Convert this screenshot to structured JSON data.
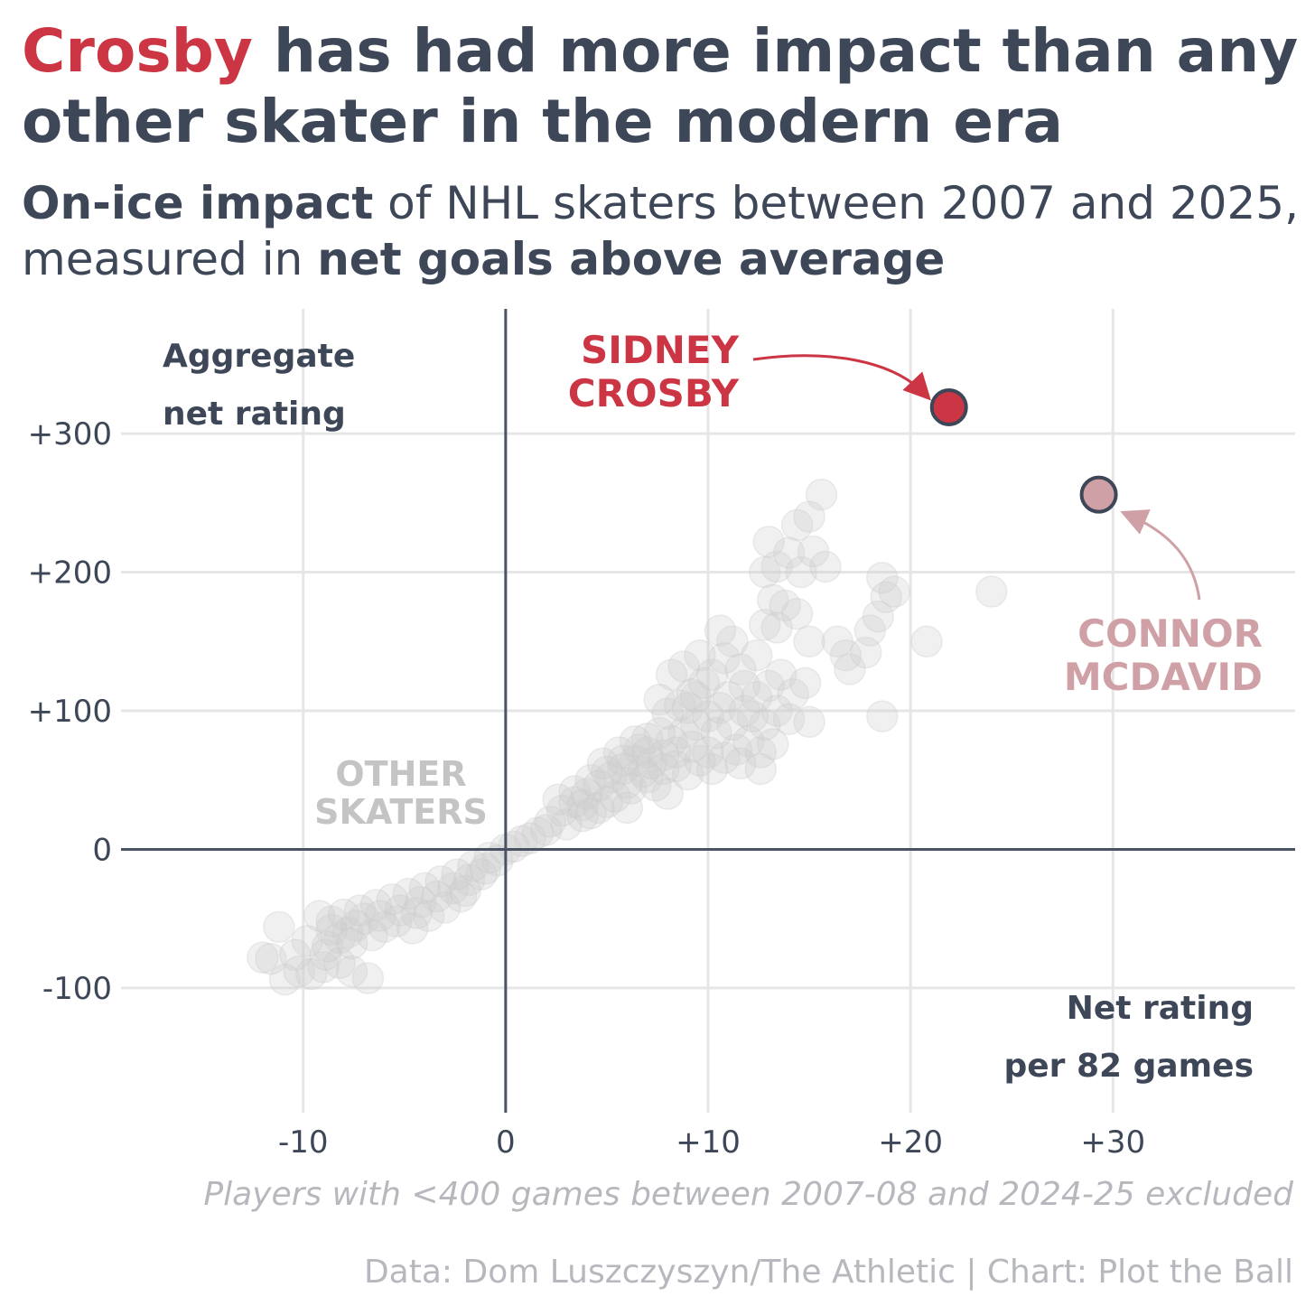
{
  "header": {
    "title_highlight": "Crosby",
    "title_rest": " has had more impact than any other skater in the modern era",
    "subtitle_bold1": "On-ice impact",
    "subtitle_mid": " of NHL skaters between 2007 and 2025, measured in ",
    "subtitle_bold2": "net goals above average"
  },
  "footer": {
    "note": "Players with <400 games between 2007-08 and 2024-25 excluded",
    "source": "Data: Dom Luszczyszyn/The Athletic | Chart: Plot the Ball"
  },
  "colors": {
    "text": "#3d4757",
    "crosby": "#cc3644",
    "mcdavid": "#cfa1a6",
    "others": "#cccccc",
    "grid": "#e6e6e6"
  },
  "chart_data": {
    "type": "scatter",
    "xlabel_lines": [
      "Net rating",
      "per 82 games"
    ],
    "ylabel_lines": [
      "Aggregate",
      "net rating"
    ],
    "xlim": [
      -19,
      39
    ],
    "ylim": [
      -190,
      390
    ],
    "x_ticks": [
      -10,
      0,
      10,
      20,
      30
    ],
    "x_tick_labels": [
      "-10",
      "0",
      "+10",
      "+20",
      "+30"
    ],
    "y_ticks": [
      -100,
      0,
      100,
      200,
      300
    ],
    "y_tick_labels": [
      "-100",
      "0",
      "+100",
      "+200",
      "+300"
    ],
    "highlighted": [
      {
        "name": "Sidney Crosby",
        "label_lines": [
          "SIDNEY",
          "CROSBY"
        ],
        "x": 21.9,
        "y": 319
      },
      {
        "name": "Connor McDavid",
        "label_lines": [
          "CONNOR",
          "MCDAVID"
        ],
        "x": 29.3,
        "y": 256
      }
    ],
    "others_label_lines": [
      "OTHER",
      "SKATERS"
    ],
    "others": [
      [
        -10.9,
        -94
      ],
      [
        -10.2,
        -88
      ],
      [
        -9.0,
        -85
      ],
      [
        -8.2,
        -82
      ],
      [
        -7.6,
        -88
      ],
      [
        -6.8,
        -93
      ],
      [
        -11.6,
        -79
      ],
      [
        -12.0,
        -78
      ],
      [
        -11.2,
        -56
      ],
      [
        -9.6,
        -90
      ],
      [
        -8.8,
        -70
      ],
      [
        -8.2,
        -64
      ],
      [
        -7.8,
        -60
      ],
      [
        -7.4,
        -55
      ],
      [
        -8.6,
        -52
      ],
      [
        -8.0,
        -47
      ],
      [
        -7.2,
        -44
      ],
      [
        -6.4,
        -40
      ],
      [
        -5.6,
        -36
      ],
      [
        -4.8,
        -32
      ],
      [
        -4.0,
        -28
      ],
      [
        -3.2,
        -23
      ],
      [
        -2.4,
        -18
      ],
      [
        -1.6,
        -12
      ],
      [
        -0.8,
        -6
      ],
      [
        0,
        0
      ],
      [
        0.8,
        6
      ],
      [
        1.6,
        12
      ],
      [
        -9.2,
        -48
      ],
      [
        -8.6,
        -58
      ],
      [
        -7.0,
        -50
      ],
      [
        -6.2,
        -48
      ],
      [
        -5.4,
        -52
      ],
      [
        -4.6,
        -57
      ],
      [
        -3.8,
        -48
      ],
      [
        -3.0,
        -42
      ],
      [
        -2.2,
        -34
      ],
      [
        -6.6,
        -62
      ],
      [
        -7.6,
        -68
      ],
      [
        -5.2,
        -44
      ],
      [
        -4.2,
        -38
      ],
      [
        -3.4,
        -34
      ],
      [
        -2.6,
        -28
      ],
      [
        -1.8,
        -22
      ],
      [
        -1.0,
        -14
      ],
      [
        -9.8,
        -66
      ],
      [
        -10.4,
        -76
      ],
      [
        -8.9,
        -76
      ],
      [
        -6.0,
        -56
      ],
      [
        -4.4,
        -46
      ],
      [
        -2.0,
        -30
      ],
      [
        -1.2,
        -18
      ],
      [
        -0.4,
        -8
      ],
      [
        0.4,
        2
      ],
      [
        1.2,
        8
      ],
      [
        2.0,
        14
      ],
      [
        2.2,
        20
      ],
      [
        2.8,
        28
      ],
      [
        3.4,
        34
      ],
      [
        4.0,
        40
      ],
      [
        4.6,
        46
      ],
      [
        5.2,
        52
      ],
      [
        5.8,
        58
      ],
      [
        6.4,
        64
      ],
      [
        7.0,
        70
      ],
      [
        3.0,
        18
      ],
      [
        3.8,
        24
      ],
      [
        4.6,
        30
      ],
      [
        5.4,
        38
      ],
      [
        6.2,
        44
      ],
      [
        7.0,
        52
      ],
      [
        7.8,
        58
      ],
      [
        2.6,
        36
      ],
      [
        3.4,
        42
      ],
      [
        4.2,
        50
      ],
      [
        5.0,
        56
      ],
      [
        5.8,
        64
      ],
      [
        6.6,
        72
      ],
      [
        4.8,
        62
      ],
      [
        5.6,
        70
      ],
      [
        6.4,
        78
      ],
      [
        7.2,
        62
      ],
      [
        7.8,
        68
      ],
      [
        8.4,
        60
      ],
      [
        9.0,
        54
      ],
      [
        9.6,
        64
      ],
      [
        10.2,
        58
      ],
      [
        10.8,
        66
      ],
      [
        11.4,
        72
      ],
      [
        8.2,
        78
      ],
      [
        8.8,
        84
      ],
      [
        9.4,
        90
      ],
      [
        10.0,
        96
      ],
      [
        10.6,
        102
      ],
      [
        8.0,
        98
      ],
      [
        8.6,
        104
      ],
      [
        9.2,
        112
      ],
      [
        9.8,
        120
      ],
      [
        8.2,
        126
      ],
      [
        8.8,
        132
      ],
      [
        9.4,
        110
      ],
      [
        10.2,
        126
      ],
      [
        10.8,
        138
      ],
      [
        11.2,
        150
      ],
      [
        10.6,
        158
      ],
      [
        9.6,
        140
      ],
      [
        11.8,
        118
      ],
      [
        12.4,
        110
      ],
      [
        13.0,
        118
      ],
      [
        13.6,
        126
      ],
      [
        14.2,
        112
      ],
      [
        14.8,
        120
      ],
      [
        12.2,
        96
      ],
      [
        12.8,
        90
      ],
      [
        13.4,
        100
      ],
      [
        14.0,
        94
      ],
      [
        15.0,
        92
      ],
      [
        12.0,
        78
      ],
      [
        12.6,
        70
      ],
      [
        13.2,
        76
      ],
      [
        11.0,
        110
      ],
      [
        11.6,
        130
      ],
      [
        12.4,
        140
      ],
      [
        13.4,
        160
      ],
      [
        12.8,
        162
      ],
      [
        13.2,
        180
      ],
      [
        13.8,
        176
      ],
      [
        12.8,
        200
      ],
      [
        13.4,
        204
      ],
      [
        14.0,
        214
      ],
      [
        14.6,
        200
      ],
      [
        13.0,
        222
      ],
      [
        14.4,
        234
      ],
      [
        15.0,
        240
      ],
      [
        15.6,
        256
      ],
      [
        15.2,
        215
      ],
      [
        15.8,
        204
      ],
      [
        15.0,
        150
      ],
      [
        16.4,
        150
      ],
      [
        16.8,
        140
      ],
      [
        17.0,
        130
      ],
      [
        17.8,
        142
      ],
      [
        18.0,
        158
      ],
      [
        18.4,
        168
      ],
      [
        18.8,
        182
      ],
      [
        18.6,
        196
      ],
      [
        19.2,
        186
      ],
      [
        20.8,
        150
      ],
      [
        24.0,
        186
      ],
      [
        18.6,
        96
      ],
      [
        6.0,
        48
      ],
      [
        5.0,
        34
      ],
      [
        4.2,
        26
      ],
      [
        6.8,
        56
      ],
      [
        7.4,
        46
      ],
      [
        8.0,
        40
      ],
      [
        7.6,
        84
      ],
      [
        7.0,
        80
      ],
      [
        9.0,
        102
      ],
      [
        6.0,
        30
      ],
      [
        3.8,
        32
      ],
      [
        7.6,
        108
      ],
      [
        10.4,
        84
      ],
      [
        11.2,
        90
      ],
      [
        11.8,
        100
      ],
      [
        10.0,
        70
      ],
      [
        8.4,
        70
      ],
      [
        9.2,
        74
      ],
      [
        11.6,
        62
      ],
      [
        12.6,
        58
      ],
      [
        14.4,
        170
      ]
    ]
  }
}
